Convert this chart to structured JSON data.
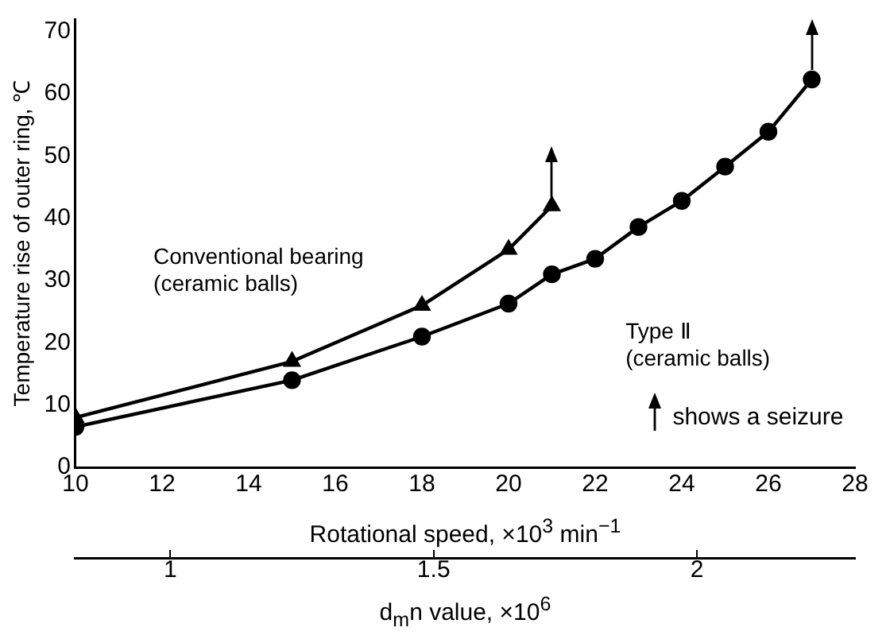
{
  "chart_data": {
    "type": "line",
    "xlabel": "Rotational speed, ×10$^{3}$ min$^{−1}$",
    "ylabel": "Temperature rise of outer ring, ℃",
    "x2label": "d$_{m}$n value, ×10$^{6}$",
    "xlim": [
      10,
      28
    ],
    "xticks": [
      10,
      12,
      14,
      16,
      18,
      20,
      22,
      24,
      26,
      28
    ],
    "ylim": [
      0,
      72
    ],
    "yticks": [
      0,
      10,
      20,
      30,
      40,
      50,
      60,
      70
    ],
    "x2lim": [
      0.82,
      2.3
    ],
    "x2ticks": [
      1,
      1.5,
      2
    ],
    "grid": false,
    "legend": false,
    "line_style": "solid",
    "series": [
      {
        "name": "Conventional bearing (ceramic balls)",
        "color": "#000000",
        "marker": "triangle",
        "x": [
          10,
          15,
          18,
          20,
          21
        ],
        "values": [
          8,
          17,
          26,
          35,
          42
        ]
      },
      {
        "name": "Type Ⅱ (ceramic balls)",
        "color": "#000000",
        "marker": "circle",
        "x": [
          10,
          15,
          18,
          20,
          21,
          22,
          23,
          24,
          25,
          26,
          27
        ],
        "values": [
          6.5,
          14,
          21,
          26.3,
          31,
          33.5,
          38.6,
          42.8,
          48.3,
          53.9,
          62.3
        ]
      }
    ],
    "annotations": [
      "shows a seizure"
    ]
  }
}
